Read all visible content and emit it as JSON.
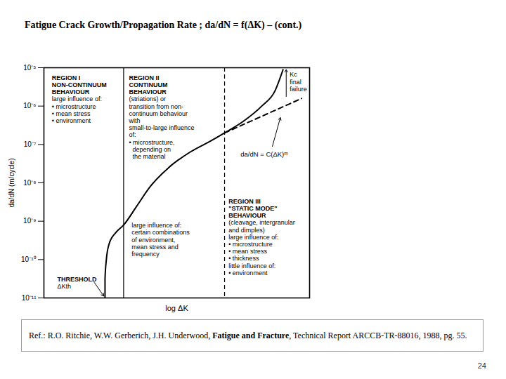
{
  "title": "Fatigue Crack Growth/Propagation Rate ; da/dN = f(ΔK) – (cont.)",
  "chart_data": {
    "type": "line",
    "xlabel": "log ΔK",
    "ylabel": "da/dN (m/cycle)",
    "log": "y",
    "tick_labels": "y",
    "xlim": [
      0,
      10
    ],
    "ylim": [
      1e-11,
      1e-05
    ],
    "yticks": [
      {
        "value": 1e-05,
        "label": "10⁻⁵"
      },
      {
        "value": 1e-06,
        "label": "10⁻⁶"
      },
      {
        "value": 1e-07,
        "label": "10⁻⁷"
      },
      {
        "value": 1e-08,
        "label": "10⁻⁸"
      },
      {
        "value": 1e-09,
        "label": "10⁻⁹"
      },
      {
        "value": 1e-10,
        "label": "10⁻¹⁰"
      },
      {
        "value": 1e-11,
        "label": "10⁻¹¹"
      }
    ],
    "series": [
      {
        "color": "#000000",
        "line_style": "solid",
        "x": [
          2.3,
          2.3,
          2.35,
          2.45,
          2.7,
          3.0,
          3.5,
          4.0,
          4.7,
          5.5,
          6.3,
          6.8,
          7.5,
          8.2,
          8.7,
          9.0
        ],
        "values": [
          1e-11,
          3.16e-11,
          1e-10,
          2.51e-10,
          5.01e-10,
          7.94e-10,
          2.51e-09,
          7.94e-09,
          2.51e-08,
          6.31e-08,
          1.26e-07,
          2e-07,
          3.98e-07,
          1e-06,
          2.51e-06,
          8.91e-06
        ]
      },
      {
        "name": "da/dN = C(ΔK)ᵐ",
        "color": "#000000",
        "line_style": "dashed",
        "x": [
          6.8,
          9.7
        ],
        "values": [
          2e-07,
          1.58e-06
        ]
      }
    ],
    "boundaries": [
      {
        "x": 3.0,
        "line_style": "solid"
      },
      {
        "x": 6.8,
        "line_style": "dashed"
      }
    ],
    "annotations": [
      {
        "text": "REGION I\nNON-CONTINUUM\nBEHAVIOUR\nlarge influence of:\n• microstructure\n• mean stress\n• environment"
      },
      {
        "text": "REGION II\nCONTINUUM\nBEHAVIOUR\n(striations) or\ntransition from non-\ncontinuum behaviour\nwith\nsmall-to-large influence\nof:\n• microstructure,\n  depending on\n  the material"
      },
      {
        "text": "Kc\nfinal\nfailure"
      },
      {
        "text": "REGION III\n\"STATIC MODE\"\nBEHAVIOUR\n(cleavage, intergranular\nand dimples)\nlarge influence of:\n• microstructure\n• mean stress\n• thickness\nlittle influence of:\n• environment"
      },
      {
        "text": "large influence of:\ncertain combinations\nof environment,\nmean stress and\nfrequency"
      },
      {
        "text": "THRESHOLD\nΔKth"
      }
    ]
  },
  "caption": {
    "prefix": "Ref.: R.O. Ritchie, W.W. Gerberich, J.H. Underwood, ",
    "bold": "Fatigue and Fracture",
    "suffix": ", Technical Report ARCCB-TR-88016, 1988, pg. 55."
  },
  "page_number": "24"
}
